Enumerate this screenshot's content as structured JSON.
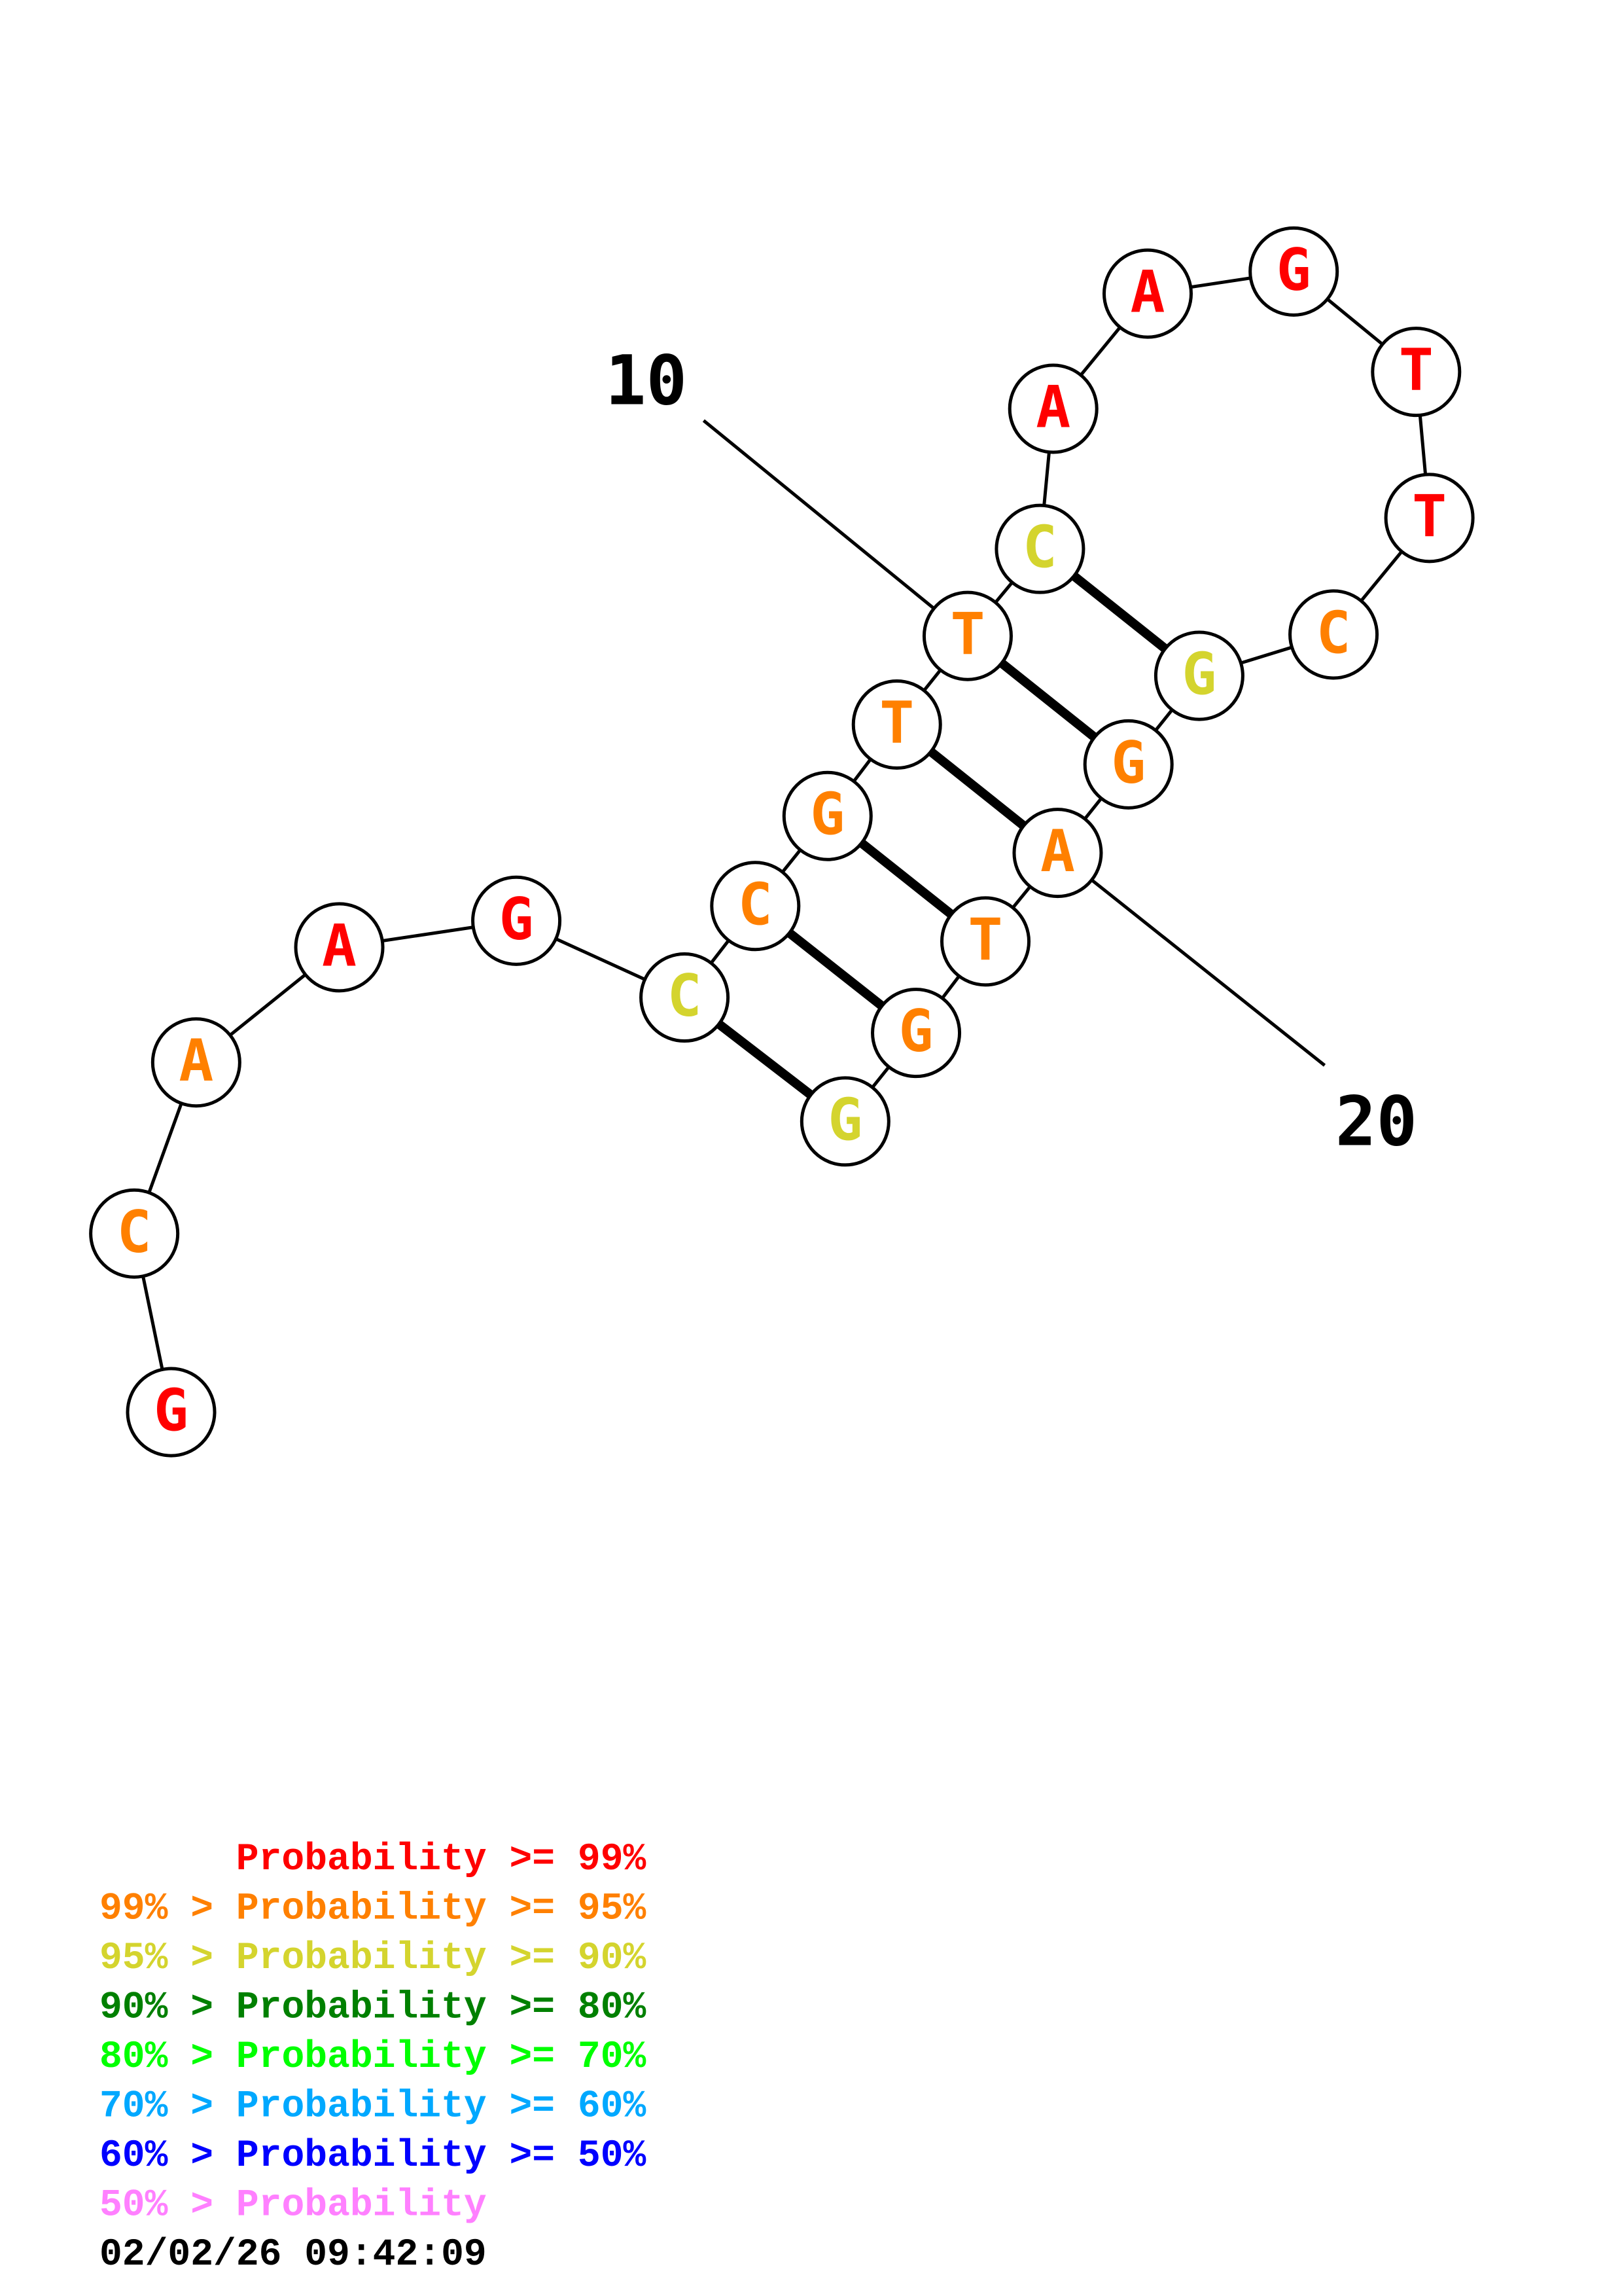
{
  "colors": {
    "red": "#ff0000",
    "orange": "#ff8000",
    "yellow": "#d4d42e",
    "dark_green": "#008000",
    "green": "#00ff00",
    "light_blue": "#00a8ff",
    "blue": "#0000ff",
    "pink": "#ff80ff",
    "line": "#000000"
  },
  "structure": {
    "nucleotides": [
      {
        "base": "G",
        "color": "red"
      },
      {
        "base": "C",
        "color": "orange"
      },
      {
        "base": "A",
        "color": "orange"
      },
      {
        "base": "A",
        "color": "red"
      },
      {
        "base": "G",
        "color": "red"
      },
      {
        "base": "C",
        "color": "yellow"
      },
      {
        "base": "C",
        "color": "orange"
      },
      {
        "base": "G",
        "color": "orange"
      },
      {
        "base": "T",
        "color": "orange"
      },
      {
        "base": "T",
        "color": "orange"
      },
      {
        "base": "C",
        "color": "yellow"
      },
      {
        "base": "A",
        "color": "red"
      },
      {
        "base": "A",
        "color": "red"
      },
      {
        "base": "G",
        "color": "red"
      },
      {
        "base": "T",
        "color": "red"
      },
      {
        "base": "T",
        "color": "red"
      },
      {
        "base": "C",
        "color": "orange"
      },
      {
        "base": "G",
        "color": "yellow"
      },
      {
        "base": "G",
        "color": "orange"
      },
      {
        "base": "A",
        "color": "orange"
      },
      {
        "base": "T",
        "color": "orange"
      },
      {
        "base": "G",
        "color": "orange"
      },
      {
        "base": "G",
        "color": "yellow"
      }
    ],
    "pairs": [
      [
        6,
        23
      ],
      [
        7,
        22
      ],
      [
        8,
        21
      ],
      [
        9,
        20
      ],
      [
        10,
        19
      ],
      [
        11,
        18
      ]
    ],
    "position_labels": [
      {
        "text": "10",
        "position": 10
      },
      {
        "text": "20",
        "position": 20
      }
    ]
  },
  "legend": [
    {
      "prefix": "",
      "label": "Probability >= 99%",
      "color": "red"
    },
    {
      "prefix": "99% > ",
      "label": "Probability >= 95%",
      "color": "orange"
    },
    {
      "prefix": "95% > ",
      "label": "Probability >= 90%",
      "color": "yellow"
    },
    {
      "prefix": "90% > ",
      "label": "Probability >= 80%",
      "color": "dark_green"
    },
    {
      "prefix": "80% > ",
      "label": "Probability >= 70%",
      "color": "green"
    },
    {
      "prefix": "70% > ",
      "label": "Probability >= 60%",
      "color": "light_blue"
    },
    {
      "prefix": "60% > ",
      "label": "Probability >= 50%",
      "color": "blue"
    },
    {
      "prefix": "50% > ",
      "label": "Probability",
      "color": "pink"
    }
  ],
  "timestamp": "02/02/26 09:42:09"
}
